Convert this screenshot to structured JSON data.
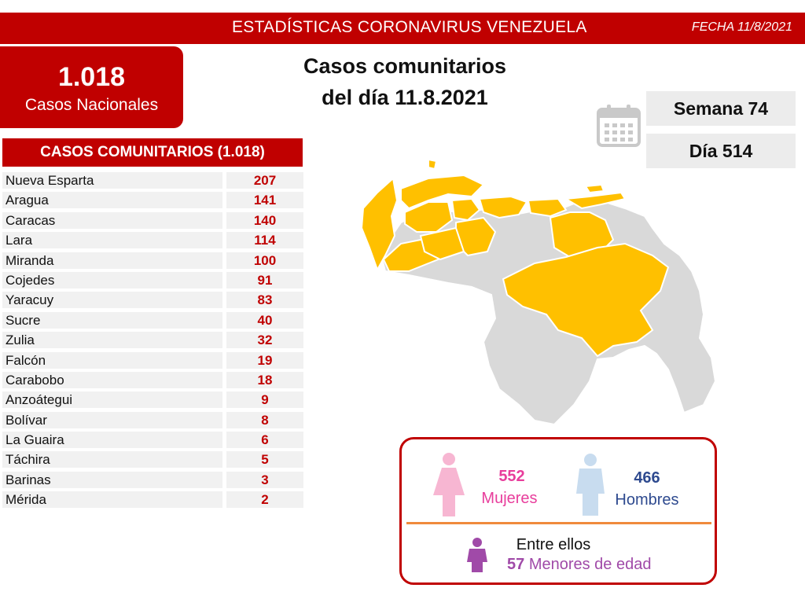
{
  "header": {
    "title": "ESTADÍSTICAS CORONAVIRUS VENEZUELA",
    "date": "FECHA 11/8/2021"
  },
  "national": {
    "value": "1.018",
    "label": "Casos Nacionales"
  },
  "headline": {
    "line1": "Casos comunitarios",
    "line2": "del día 11.8.2021"
  },
  "calendar": {
    "icon": "calendar-icon",
    "week": "Semana 74",
    "day": "Día 514"
  },
  "table": {
    "header": "CASOS COMUNITARIOS (1.018)",
    "rows": [
      {
        "state": "Nueva Esparta",
        "value": "207"
      },
      {
        "state": "Aragua",
        "value": "141"
      },
      {
        "state": "Caracas",
        "value": "140"
      },
      {
        "state": "Lara",
        "value": "114"
      },
      {
        "state": "Miranda",
        "value": "100"
      },
      {
        "state": "Cojedes",
        "value": "91"
      },
      {
        "state": "Yaracuy",
        "value": "83"
      },
      {
        "state": "Sucre",
        "value": "40"
      },
      {
        "state": "Zulia",
        "value": "32"
      },
      {
        "state": "Falcón",
        "value": "19"
      },
      {
        "state": "Carabobo",
        "value": "18"
      },
      {
        "state": "Anzoátegui",
        "value": "9"
      },
      {
        "state": "Bolívar",
        "value": "8"
      },
      {
        "state": "La Guaira",
        "value": "6"
      },
      {
        "state": "Táchira",
        "value": "5"
      },
      {
        "state": "Barinas",
        "value": "3"
      },
      {
        "state": "Mérida",
        "value": "2"
      }
    ]
  },
  "gender": {
    "women_count": "552",
    "women_label": "Mujeres",
    "men_count": "466",
    "men_label": "Hombres",
    "minors_intro": "Entre ellos",
    "minors_count": "57",
    "minors_label": "Menores de edad"
  },
  "colors": {
    "brand_red": "#c00000",
    "map_highlight": "#ffc000",
    "map_base": "#d9d9d9",
    "women": "#e83e9c",
    "men": "#2e4a8f",
    "minors": "#a04aa8",
    "divider": "#f08a3c"
  }
}
